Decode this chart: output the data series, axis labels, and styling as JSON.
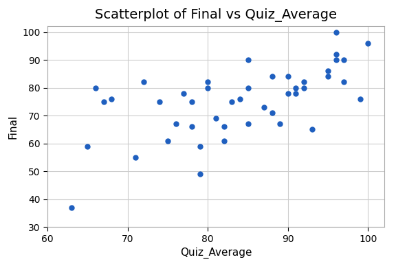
{
  "title": "Scatterplot of Final vs Quiz_Average",
  "xlabel": "Quiz_Average",
  "ylabel": "Final",
  "xlim": [
    60,
    102
  ],
  "ylim": [
    30,
    102
  ],
  "xticks": [
    60,
    70,
    80,
    90,
    100
  ],
  "yticks": [
    30,
    40,
    50,
    60,
    70,
    80,
    90,
    100
  ],
  "x": [
    63,
    65,
    66,
    67,
    68,
    71,
    72,
    74,
    75,
    76,
    77,
    78,
    78,
    79,
    79,
    80,
    80,
    81,
    82,
    82,
    83,
    84,
    85,
    85,
    85,
    87,
    88,
    88,
    89,
    90,
    90,
    91,
    91,
    92,
    92,
    93,
    95,
    95,
    96,
    96,
    96,
    97,
    97,
    99,
    100
  ],
  "y": [
    37,
    59,
    80,
    75,
    76,
    55,
    82,
    75,
    61,
    67,
    78,
    75,
    66,
    49,
    59,
    80,
    82,
    69,
    66,
    61,
    75,
    76,
    90,
    67,
    80,
    73,
    71,
    84,
    67,
    78,
    84,
    80,
    78,
    82,
    80,
    65,
    86,
    84,
    100,
    92,
    90,
    90,
    82,
    76,
    96
  ],
  "color": "#1f5fbf",
  "marker": "o",
  "markersize": 5,
  "bg_color": "#ffffff",
  "grid": true,
  "title_fontsize": 14,
  "label_fontsize": 11,
  "tick_fontsize": 10,
  "spine_color": "#aaaaaa"
}
